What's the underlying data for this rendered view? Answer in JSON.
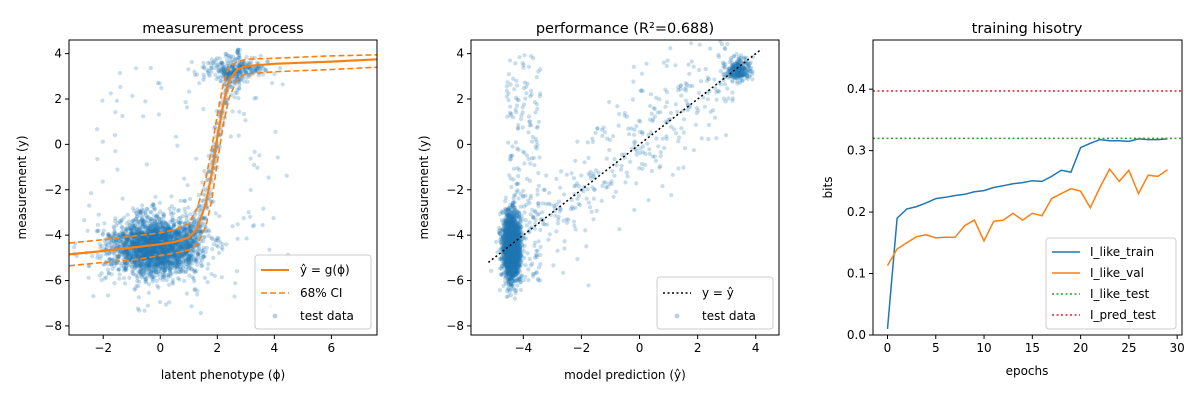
{
  "colors": {
    "blue": "#1f77b4",
    "orange": "#ff7f0e",
    "green": "#2ca02c",
    "red": "#d62728",
    "black": "#000000"
  },
  "chart_data": [
    {
      "type": "scatter",
      "title": "measurement process",
      "xlabel": "latent phenotype (ϕ)",
      "ylabel": "measurement (y)",
      "xlim": [
        -3.2,
        7.6
      ],
      "ylim": [
        -8.4,
        4.6
      ],
      "xticks": [
        -2,
        0,
        2,
        4,
        6
      ],
      "yticks": [
        -8,
        -6,
        -4,
        -2,
        0,
        2,
        4
      ],
      "legend_position": "lower-right",
      "series": [
        {
          "name": "ŷ = g(ϕ)",
          "style": "solid-line",
          "color": "#ff7f0e",
          "x": [
            -3.2,
            -2,
            -1,
            0,
            0.5,
            1,
            1.3,
            1.6,
            1.8,
            2.0,
            2.2,
            2.4,
            2.7,
            3,
            4,
            5,
            6,
            7.6
          ],
          "y": [
            -4.85,
            -4.7,
            -4.55,
            -4.4,
            -4.3,
            -4.1,
            -3.7,
            -2.6,
            -1.3,
            0.3,
            1.7,
            2.8,
            3.3,
            3.45,
            3.55,
            3.6,
            3.65,
            3.75
          ]
        },
        {
          "name": "68% CI",
          "style": "dashed-line",
          "color": "#ff7f0e",
          "x": [
            -3.2,
            -2,
            -1,
            0,
            0.5,
            1,
            1.3,
            1.6,
            1.8,
            2.0,
            2.2,
            2.4,
            2.7,
            3,
            4,
            5,
            6,
            7.6
          ],
          "y_upper": [
            -4.35,
            -4.2,
            -4.05,
            -3.9,
            -3.75,
            -3.5,
            -2.8,
            -1.5,
            -0.2,
            1.3,
            2.6,
            3.4,
            3.65,
            3.75,
            3.8,
            3.85,
            3.9,
            3.95
          ],
          "y_lower": [
            -5.35,
            -5.2,
            -5.1,
            -4.9,
            -4.8,
            -4.65,
            -4.4,
            -3.6,
            -2.5,
            -0.8,
            0.8,
            2.0,
            2.9,
            3.1,
            3.2,
            3.25,
            3.3,
            3.4
          ]
        },
        {
          "name": "test data",
          "style": "scatter",
          "color": "#1f77b4",
          "alpha": 0.25,
          "clusters": [
            {
              "cx": -0.2,
              "cy": -4.5,
              "sx": 0.8,
              "sy": 0.65,
              "n": 2400
            },
            {
              "cx": 2.6,
              "cy": 3.3,
              "sx": 0.55,
              "sy": 0.25,
              "n": 260
            }
          ],
          "follow_curve_n": 300,
          "outliers_n": 140
        }
      ]
    },
    {
      "type": "scatter",
      "title": "performance (R²=0.688)",
      "xlabel": "model prediction (ŷ)",
      "ylabel": "measurement (y)",
      "xlim": [
        -5.8,
        4.8
      ],
      "ylim": [
        -8.4,
        4.6
      ],
      "xticks": [
        -4,
        -2,
        0,
        2,
        4
      ],
      "yticks": [
        -8,
        -6,
        -4,
        -2,
        0,
        2,
        4
      ],
      "legend_position": "lower-right",
      "series": [
        {
          "name": "y = ŷ",
          "style": "dotted-line",
          "color": "#000000",
          "x": [
            -5.2,
            4.2
          ],
          "y": [
            -5.2,
            4.2
          ]
        },
        {
          "name": "test data",
          "style": "scatter",
          "color": "#1f77b4",
          "alpha": 0.25,
          "clusters": [
            {
              "cx": -4.4,
              "cy": -4.5,
              "sx": 0.15,
              "sy": 0.75,
              "n": 2200
            },
            {
              "cx": 3.4,
              "cy": 3.3,
              "sx": 0.2,
              "sy": 0.25,
              "n": 260
            }
          ],
          "diagonal_n": 380,
          "outliers_n": 180
        }
      ]
    },
    {
      "type": "line",
      "title": "training hisotry",
      "xlabel": "epochs",
      "ylabel": "bits",
      "xlim": [
        -1.5,
        30.5
      ],
      "ylim": [
        0.0,
        0.48
      ],
      "xticks": [
        0,
        5,
        10,
        15,
        20,
        25,
        30
      ],
      "yticks": [
        0.0,
        0.1,
        0.2,
        0.3,
        0.4
      ],
      "ytick_labels": [
        "0.0",
        "0.1",
        "0.2",
        "0.3",
        "0.4"
      ],
      "legend_position": "lower-right",
      "x": [
        0,
        1,
        2,
        3,
        4,
        5,
        6,
        7,
        8,
        9,
        10,
        11,
        12,
        13,
        14,
        15,
        16,
        17,
        18,
        19,
        20,
        21,
        22,
        23,
        24,
        25,
        26,
        27,
        28,
        29
      ],
      "series": [
        {
          "name": "I_like_train",
          "style": "solid-line",
          "color": "#1f77b4",
          "values": [
            0.01,
            0.19,
            0.205,
            0.209,
            0.215,
            0.222,
            0.224,
            0.227,
            0.229,
            0.233,
            0.235,
            0.24,
            0.243,
            0.246,
            0.248,
            0.251,
            0.25,
            0.258,
            0.268,
            0.265,
            0.305,
            0.312,
            0.318,
            0.316,
            0.316,
            0.315,
            0.319,
            0.318,
            0.318,
            0.319
          ]
        },
        {
          "name": "I_like_val",
          "style": "solid-line",
          "color": "#ff7f0e",
          "values": [
            0.113,
            0.14,
            0.15,
            0.16,
            0.163,
            0.158,
            0.159,
            0.159,
            0.178,
            0.187,
            0.153,
            0.185,
            0.187,
            0.198,
            0.187,
            0.198,
            0.194,
            0.222,
            0.23,
            0.238,
            0.234,
            0.207,
            0.24,
            0.27,
            0.25,
            0.268,
            0.23,
            0.26,
            0.258,
            0.269
          ]
        },
        {
          "name": "I_like_test",
          "style": "dotted-line",
          "color": "#2ca02c",
          "constant": 0.32
        },
        {
          "name": "I_pred_test",
          "style": "dotted-line",
          "color": "#d62728",
          "constant": 0.397
        }
      ]
    }
  ]
}
